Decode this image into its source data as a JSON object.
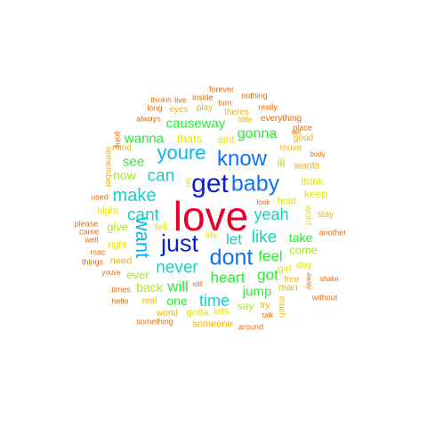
{
  "colors": {
    "red": "#e8002a",
    "dark_blue": "#0a1ed8",
    "blue": "#0c74f0",
    "sky": "#0ab4f0",
    "teal": "#16d0c0",
    "green": "#2ce838",
    "lime": "#a6ea18",
    "yellow": "#e6e400",
    "gold": "#f0b400",
    "orange": "#e86c0a"
  },
  "words": [
    {
      "text": "love",
      "color": "red",
      "rank": 1
    },
    {
      "text": "get",
      "color": "dark_blue",
      "rank": 2
    },
    {
      "text": "just",
      "color": "dark_blue",
      "rank": 2
    },
    {
      "text": "baby",
      "color": "blue",
      "rank": 3
    },
    {
      "text": "dont",
      "color": "blue",
      "rank": 3
    },
    {
      "text": "know",
      "color": "blue",
      "rank": 3
    },
    {
      "text": "youre",
      "color": "sky",
      "rank": 4
    },
    {
      "text": "want",
      "color": "sky",
      "rank": 4
    },
    {
      "text": "make",
      "color": "teal",
      "rank": 5
    },
    {
      "text": "cant",
      "color": "teal",
      "rank": 5
    },
    {
      "text": "can",
      "color": "teal",
      "rank": 5
    },
    {
      "text": "never",
      "color": "teal",
      "rank": 5
    },
    {
      "text": "like",
      "color": "teal",
      "rank": 5
    },
    {
      "text": "time",
      "color": "teal",
      "rank": 5
    },
    {
      "text": "yeah",
      "color": "teal",
      "rank": 5
    },
    {
      "text": "let",
      "color": "teal",
      "rank": 5
    },
    {
      "text": "heart",
      "color": "green",
      "rank": 6
    },
    {
      "text": "feel",
      "color": "green",
      "rank": 6
    },
    {
      "text": "will",
      "color": "green",
      "rank": 6
    },
    {
      "text": "got",
      "color": "green",
      "rank": 6
    },
    {
      "text": "gonna",
      "color": "green",
      "rank": 6
    },
    {
      "text": "causeway",
      "color": "green",
      "rank": 6
    },
    {
      "text": "wanna",
      "color": "green",
      "rank": 6
    },
    {
      "text": "see",
      "color": "green",
      "rank": 6
    },
    {
      "text": "jump",
      "color": "green",
      "rank": 6
    },
    {
      "text": "one",
      "color": "green",
      "rank": 6
    },
    {
      "text": "take",
      "color": "green",
      "rank": 6
    },
    {
      "text": "back",
      "color": "lime",
      "rank": 7
    },
    {
      "text": "now",
      "color": "lime",
      "rank": 7
    },
    {
      "text": "come",
      "color": "lime",
      "rank": 7
    },
    {
      "text": "give",
      "color": "lime",
      "rank": 7
    },
    {
      "text": "ever",
      "color": "lime",
      "rank": 7
    },
    {
      "text": "ill",
      "color": "lime",
      "rank": 7
    },
    {
      "text": "say",
      "color": "lime",
      "rank": 7
    },
    {
      "text": "thats",
      "color": "yellow",
      "rank": 8
    },
    {
      "text": "aint",
      "color": "yellow",
      "rank": 8
    },
    {
      "text": "think",
      "color": "yellow",
      "rank": 8
    },
    {
      "text": "keep",
      "color": "yellow",
      "rank": 8
    },
    {
      "text": "wont",
      "color": "yellow",
      "rank": 8
    },
    {
      "text": "night",
      "color": "yellow",
      "rank": 8
    },
    {
      "text": "right",
      "color": "yellow",
      "rank": 8
    },
    {
      "text": "tell",
      "color": "yellow",
      "rank": 8
    },
    {
      "text": "hold",
      "color": "yellow",
      "rank": 8
    },
    {
      "text": "girl",
      "color": "yellow",
      "rank": 8
    },
    {
      "text": "day",
      "color": "yellow",
      "rank": 8
    },
    {
      "text": "gotta",
      "color": "yellow",
      "rank": 8
    },
    {
      "text": "lets",
      "color": "yellow",
      "rank": 8
    },
    {
      "text": "life",
      "color": "yellow",
      "rank": 8
    },
    {
      "text": "so",
      "color": "yellow",
      "rank": 8
    },
    {
      "text": "need",
      "color": "gold",
      "rank": 9
    },
    {
      "text": "man",
      "color": "gold",
      "rank": 9
    },
    {
      "text": "wants",
      "color": "gold",
      "rank": 9
    },
    {
      "text": "stay",
      "color": "gold",
      "rank": 9
    },
    {
      "text": "real",
      "color": "gold",
      "rank": 9
    },
    {
      "text": "world",
      "color": "gold",
      "rank": 9
    },
    {
      "text": "someone",
      "color": "gold",
      "rank": 9
    },
    {
      "text": "mind",
      "color": "gold",
      "rank": 9
    },
    {
      "text": "remember",
      "color": "gold",
      "rank": 9
    },
    {
      "text": "much",
      "color": "gold",
      "rank": 9
    },
    {
      "text": "good",
      "color": "gold",
      "rank": 9
    },
    {
      "text": "move",
      "color": "gold",
      "rank": 9
    },
    {
      "text": "theres",
      "color": "gold",
      "rank": 9
    },
    {
      "text": "eyes",
      "color": "gold",
      "rank": 9
    },
    {
      "text": "play",
      "color": "gold",
      "rank": 9
    },
    {
      "text": "free",
      "color": "gold",
      "rank": 9
    },
    {
      "text": "try",
      "color": "gold",
      "rank": 9
    },
    {
      "text": "little",
      "color": "gold",
      "rank": 9
    },
    {
      "text": "everything",
      "color": "orange",
      "rank": 10
    },
    {
      "text": "another",
      "color": "orange",
      "rank": 10
    },
    {
      "text": "around",
      "color": "orange",
      "rank": 10
    },
    {
      "text": "forever",
      "color": "orange",
      "rank": 10
    },
    {
      "text": "nothing",
      "color": "orange",
      "rank": 10
    },
    {
      "text": "really",
      "color": "orange",
      "rank": 10
    },
    {
      "text": "inside",
      "color": "orange",
      "rank": 10
    },
    {
      "text": "thinkin",
      "color": "orange",
      "rank": 10
    },
    {
      "text": "live",
      "color": "orange",
      "rank": 10
    },
    {
      "text": "turn",
      "color": "orange",
      "rank": 10
    },
    {
      "text": "long",
      "color": "orange",
      "rank": 10
    },
    {
      "text": "always",
      "color": "orange",
      "rank": 10
    },
    {
      "text": "going",
      "color": "orange",
      "rank": 10
    },
    {
      "text": "place",
      "color": "orange",
      "rank": 10
    },
    {
      "text": "set",
      "color": "orange",
      "rank": 10
    },
    {
      "text": "body",
      "color": "orange",
      "rank": 10
    },
    {
      "text": "used",
      "color": "orange",
      "rank": 10
    },
    {
      "text": "please",
      "color": "orange",
      "rank": 10
    },
    {
      "text": "came",
      "color": "orange",
      "rank": 10
    },
    {
      "text": "well",
      "color": "orange",
      "rank": 10
    },
    {
      "text": "mac",
      "color": "orange",
      "rank": 10
    },
    {
      "text": "things",
      "color": "orange",
      "rank": 10
    },
    {
      "text": "youve",
      "color": "orange",
      "rank": 10
    },
    {
      "text": "times",
      "color": "orange",
      "rank": 10
    },
    {
      "text": "hello",
      "color": "orange",
      "rank": 10
    },
    {
      "text": "something",
      "color": "orange",
      "rank": 10
    },
    {
      "text": "still",
      "color": "orange",
      "rank": 10
    },
    {
      "text": "talk",
      "color": "orange",
      "rank": 10
    },
    {
      "text": "look",
      "color": "orange",
      "rank": 10
    },
    {
      "text": "shake",
      "color": "orange",
      "rank": 10
    },
    {
      "text": "without",
      "color": "orange",
      "rank": 10
    },
    {
      "text": "away",
      "color": "orange",
      "rank": 10
    }
  ]
}
